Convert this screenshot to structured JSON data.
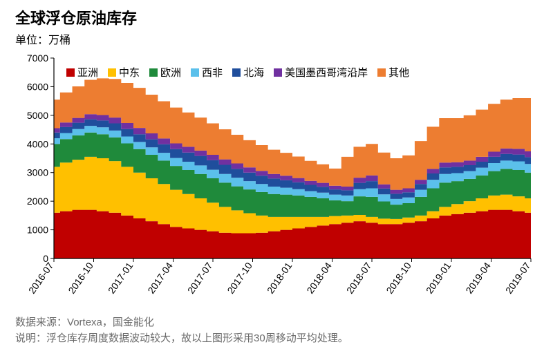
{
  "title": "全球浮仓原油库存",
  "subtitle": "单位：万桶",
  "source_label": "数据来源：",
  "source_value": "Vortexa，国金能化",
  "note_label": "说明：",
  "note_value": "浮仓库存周度数据波动较大，故以上图形采用30周移动平均处理。",
  "chart": {
    "type": "stacked-area-step",
    "background_color": "#ffffff",
    "plot_border_color": "#000000",
    "tick_color": "#000000",
    "axis_label_color": "#000000",
    "axis_label_fontsize": 14,
    "x_label_rotation": -55,
    "ylim": [
      0,
      7000
    ],
    "ytick_step": 1000,
    "yticks": [
      0,
      1000,
      2000,
      3000,
      4000,
      5000,
      6000,
      7000
    ],
    "x_labels": [
      "2016-07",
      "2016-10",
      "2017-01",
      "2017-04",
      "2017-07",
      "2017-10",
      "2018-01",
      "2018-04",
      "2018-07",
      "2018-10",
      "2019-01",
      "2019-04",
      "2019-07"
    ],
    "series": [
      {
        "key": "asia",
        "label": "亚洲",
        "color": "#c00000"
      },
      {
        "key": "mideast",
        "label": "中东",
        "color": "#ffc000"
      },
      {
        "key": "europe",
        "label": "欧洲",
        "color": "#1f8a3b"
      },
      {
        "key": "wafrica",
        "label": "西非",
        "color": "#5bc0eb"
      },
      {
        "key": "northsea",
        "label": "北海",
        "color": "#1f4e9c"
      },
      {
        "key": "usgulf",
        "label": "美国墨西哥湾沿岸",
        "color": "#7030a0"
      },
      {
        "key": "other",
        "label": "其他",
        "color": "#ed7d31"
      }
    ],
    "categories_n": 40,
    "data": {
      "asia": [
        1600,
        1650,
        1700,
        1700,
        1650,
        1600,
        1500,
        1400,
        1300,
        1200,
        1100,
        1050,
        1000,
        950,
        900,
        880,
        880,
        900,
        950,
        1000,
        1050,
        1100,
        1150,
        1200,
        1250,
        1300,
        1250,
        1200,
        1200,
        1250,
        1300,
        1400,
        1500,
        1550,
        1600,
        1650,
        1700,
        1700,
        1650,
        1600
      ],
      "mideast": [
        1600,
        1700,
        1750,
        1850,
        1850,
        1800,
        1700,
        1600,
        1500,
        1400,
        1300,
        1200,
        1100,
        1000,
        900,
        800,
        700,
        600,
        500,
        450,
        400,
        350,
        300,
        280,
        250,
        220,
        200,
        190,
        180,
        180,
        200,
        250,
        300,
        350,
        400,
        450,
        500,
        530,
        520,
        500
      ],
      "europe": [
        800,
        820,
        850,
        850,
        840,
        830,
        820,
        820,
        820,
        820,
        830,
        840,
        850,
        850,
        850,
        840,
        830,
        820,
        800,
        780,
        750,
        700,
        650,
        550,
        500,
        650,
        700,
        600,
        500,
        500,
        650,
        800,
        850,
        800,
        780,
        800,
        850,
        900,
        920,
        900
      ],
      "wafrica": [
        200,
        210,
        220,
        230,
        240,
        240,
        240,
        250,
        260,
        270,
        280,
        290,
        300,
        300,
        300,
        300,
        290,
        280,
        260,
        240,
        220,
        200,
        200,
        200,
        200,
        250,
        300,
        250,
        200,
        200,
        250,
        300,
        300,
        280,
        270,
        270,
        280,
        290,
        300,
        300
      ],
      "northsea": [
        200,
        210,
        220,
        230,
        240,
        250,
        260,
        270,
        280,
        300,
        310,
        320,
        330,
        330,
        320,
        310,
        300,
        290,
        280,
        260,
        240,
        220,
        200,
        180,
        180,
        220,
        250,
        200,
        180,
        180,
        200,
        220,
        230,
        220,
        210,
        210,
        220,
        230,
        240,
        240
      ],
      "usgulf": [
        150,
        160,
        170,
        180,
        190,
        200,
        210,
        220,
        210,
        200,
        200,
        200,
        190,
        190,
        190,
        190,
        180,
        170,
        160,
        160,
        150,
        140,
        140,
        130,
        130,
        180,
        200,
        150,
        140,
        140,
        150,
        160,
        170,
        160,
        160,
        170,
        180,
        190,
        200,
        200
      ],
      "other": [
        1000,
        1050,
        1100,
        1200,
        1280,
        1350,
        1400,
        1400,
        1350,
        1300,
        1250,
        1200,
        1150,
        1100,
        1050,
        1000,
        950,
        900,
        850,
        800,
        750,
        700,
        650,
        600,
        1040,
        1080,
        1100,
        1110,
        1100,
        1150,
        1350,
        1470,
        1550,
        1540,
        1580,
        1650,
        1670,
        1710,
        1770,
        1860
      ]
    }
  }
}
